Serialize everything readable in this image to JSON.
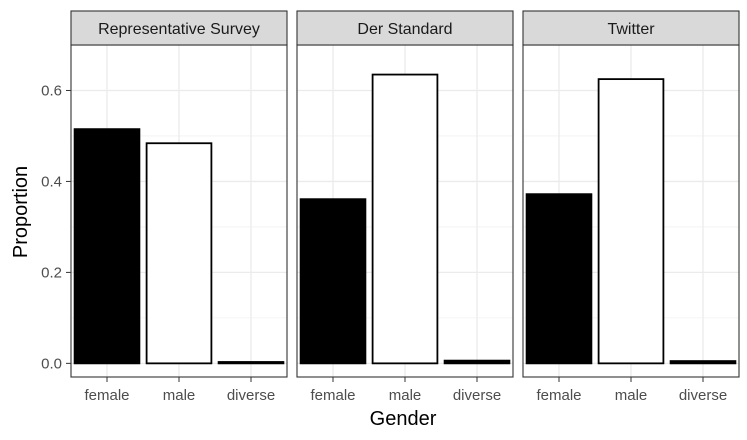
{
  "chart_data": {
    "type": "bar",
    "facet": "columns",
    "xlabel": "Gender",
    "ylabel": "Proportion",
    "ylim": [
      -0.03,
      0.7
    ],
    "yticks": [
      0.0,
      0.2,
      0.4,
      0.6
    ],
    "ytick_labels": [
      "0.0",
      "0.2",
      "0.4",
      "0.6"
    ],
    "categories": [
      "female",
      "male",
      "diverse"
    ],
    "bar_fill": {
      "female": "#000000",
      "male": "#ffffff",
      "diverse": "#000000"
    },
    "bar_stroke": "#000000",
    "strip_fill": "#d9d9d9",
    "grid": true,
    "legend": "none",
    "panels": [
      {
        "label": "Representative Survey",
        "values": [
          0.515,
          0.484,
          0.003
        ]
      },
      {
        "label": "Der Standard",
        "values": [
          0.361,
          0.635,
          0.006
        ]
      },
      {
        "label": "Twitter",
        "values": [
          0.372,
          0.625,
          0.005
        ]
      }
    ]
  }
}
